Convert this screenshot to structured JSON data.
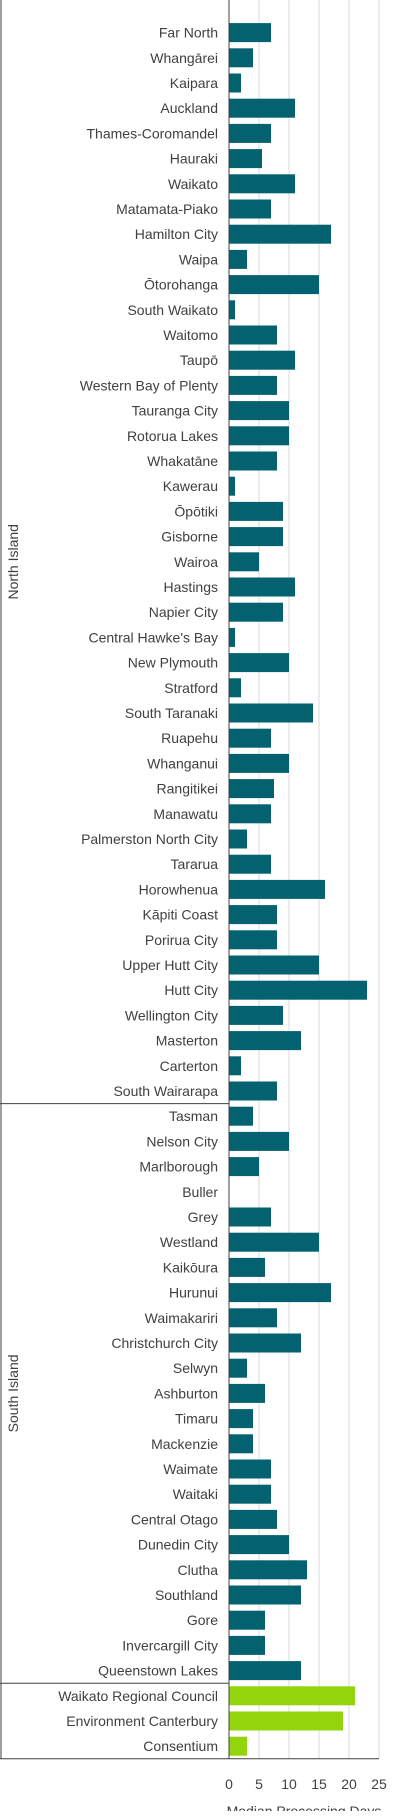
{
  "chart_data": {
    "type": "bar",
    "orientation": "horizontal",
    "xlabel": "Median Processing Days",
    "xlim": [
      0,
      25
    ],
    "xticks": [
      0,
      5,
      10,
      15,
      20,
      25
    ],
    "grid": true,
    "colors": {
      "council": "#04616f",
      "regional": "#92d50c",
      "grid": "#d9d9d9",
      "axis": "#404040"
    },
    "groups": [
      {
        "label": "North Island",
        "items": [
          {
            "name": "Far North",
            "value": 7
          },
          {
            "name": "Whangārei",
            "value": 4
          },
          {
            "name": "Kaipara",
            "value": 2
          },
          {
            "name": "Auckland",
            "value": 11
          },
          {
            "name": "Thames-Coromandel",
            "value": 7
          },
          {
            "name": "Hauraki",
            "value": 5.5
          },
          {
            "name": "Waikato",
            "value": 11
          },
          {
            "name": "Matamata-Piako",
            "value": 7
          },
          {
            "name": "Hamilton City",
            "value": 17
          },
          {
            "name": "Waipa",
            "value": 3
          },
          {
            "name": "Ōtorohanga",
            "value": 15
          },
          {
            "name": "South Waikato",
            "value": 1
          },
          {
            "name": "Waitomo",
            "value": 8
          },
          {
            "name": "Taupō",
            "value": 11
          },
          {
            "name": "Western Bay of Plenty",
            "value": 8
          },
          {
            "name": "Tauranga City",
            "value": 10
          },
          {
            "name": "Rotorua Lakes",
            "value": 10
          },
          {
            "name": "Whakatāne",
            "value": 8
          },
          {
            "name": "Kawerau",
            "value": 1
          },
          {
            "name": "Ōpōtiki",
            "value": 9
          },
          {
            "name": "Gisborne",
            "value": 9
          },
          {
            "name": "Wairoa",
            "value": 5
          },
          {
            "name": "Hastings",
            "value": 11
          },
          {
            "name": "Napier City",
            "value": 9
          },
          {
            "name": "Central Hawke's Bay",
            "value": 1
          },
          {
            "name": "New Plymouth",
            "value": 10
          },
          {
            "name": "Stratford",
            "value": 2
          },
          {
            "name": "South Taranaki",
            "value": 14
          },
          {
            "name": "Ruapehu",
            "value": 7
          },
          {
            "name": "Whanganui",
            "value": 10
          },
          {
            "name": "Rangitikei",
            "value": 7.5
          },
          {
            "name": "Manawatu",
            "value": 7
          },
          {
            "name": "Palmerston North City",
            "value": 3
          },
          {
            "name": "Tararua",
            "value": 7
          },
          {
            "name": "Horowhenua",
            "value": 16
          },
          {
            "name": "Kāpiti Coast",
            "value": 8
          },
          {
            "name": "Porirua City",
            "value": 8
          },
          {
            "name": "Upper Hutt City",
            "value": 15
          },
          {
            "name": "Hutt City",
            "value": 23
          },
          {
            "name": "Wellington City",
            "value": 9
          },
          {
            "name": "Masterton",
            "value": 12
          },
          {
            "name": "Carterton",
            "value": 2
          },
          {
            "name": "South Wairarapa",
            "value": 8
          }
        ]
      },
      {
        "label": "South Island",
        "items": [
          {
            "name": "Tasman",
            "value": 4
          },
          {
            "name": "Nelson City",
            "value": 10
          },
          {
            "name": "Marlborough",
            "value": 5
          },
          {
            "name": "Buller",
            "value": 0
          },
          {
            "name": "Grey",
            "value": 7
          },
          {
            "name": "Westland",
            "value": 15
          },
          {
            "name": "Kaikōura",
            "value": 6
          },
          {
            "name": "Hurunui",
            "value": 17
          },
          {
            "name": "Waimakariri",
            "value": 8
          },
          {
            "name": "Christchurch City",
            "value": 12
          },
          {
            "name": "Selwyn",
            "value": 3
          },
          {
            "name": "Ashburton",
            "value": 6
          },
          {
            "name": "Timaru",
            "value": 4
          },
          {
            "name": "Mackenzie",
            "value": 4
          },
          {
            "name": "Waimate",
            "value": 7
          },
          {
            "name": "Waitaki",
            "value": 7
          },
          {
            "name": "Central Otago",
            "value": 8
          },
          {
            "name": "Dunedin City",
            "value": 10
          },
          {
            "name": "Clutha",
            "value": 13
          },
          {
            "name": "Southland",
            "value": 12
          },
          {
            "name": "Gore",
            "value": 6
          },
          {
            "name": "Invercargill City",
            "value": 6
          },
          {
            "name": "Queenstown Lakes",
            "value": 12
          }
        ]
      },
      {
        "label": "",
        "color": "regional",
        "items": [
          {
            "name": "Waikato Regional Council",
            "value": 21
          },
          {
            "name": "Environment Canterbury",
            "value": 19
          },
          {
            "name": "Consentium",
            "value": 3
          }
        ]
      }
    ]
  }
}
